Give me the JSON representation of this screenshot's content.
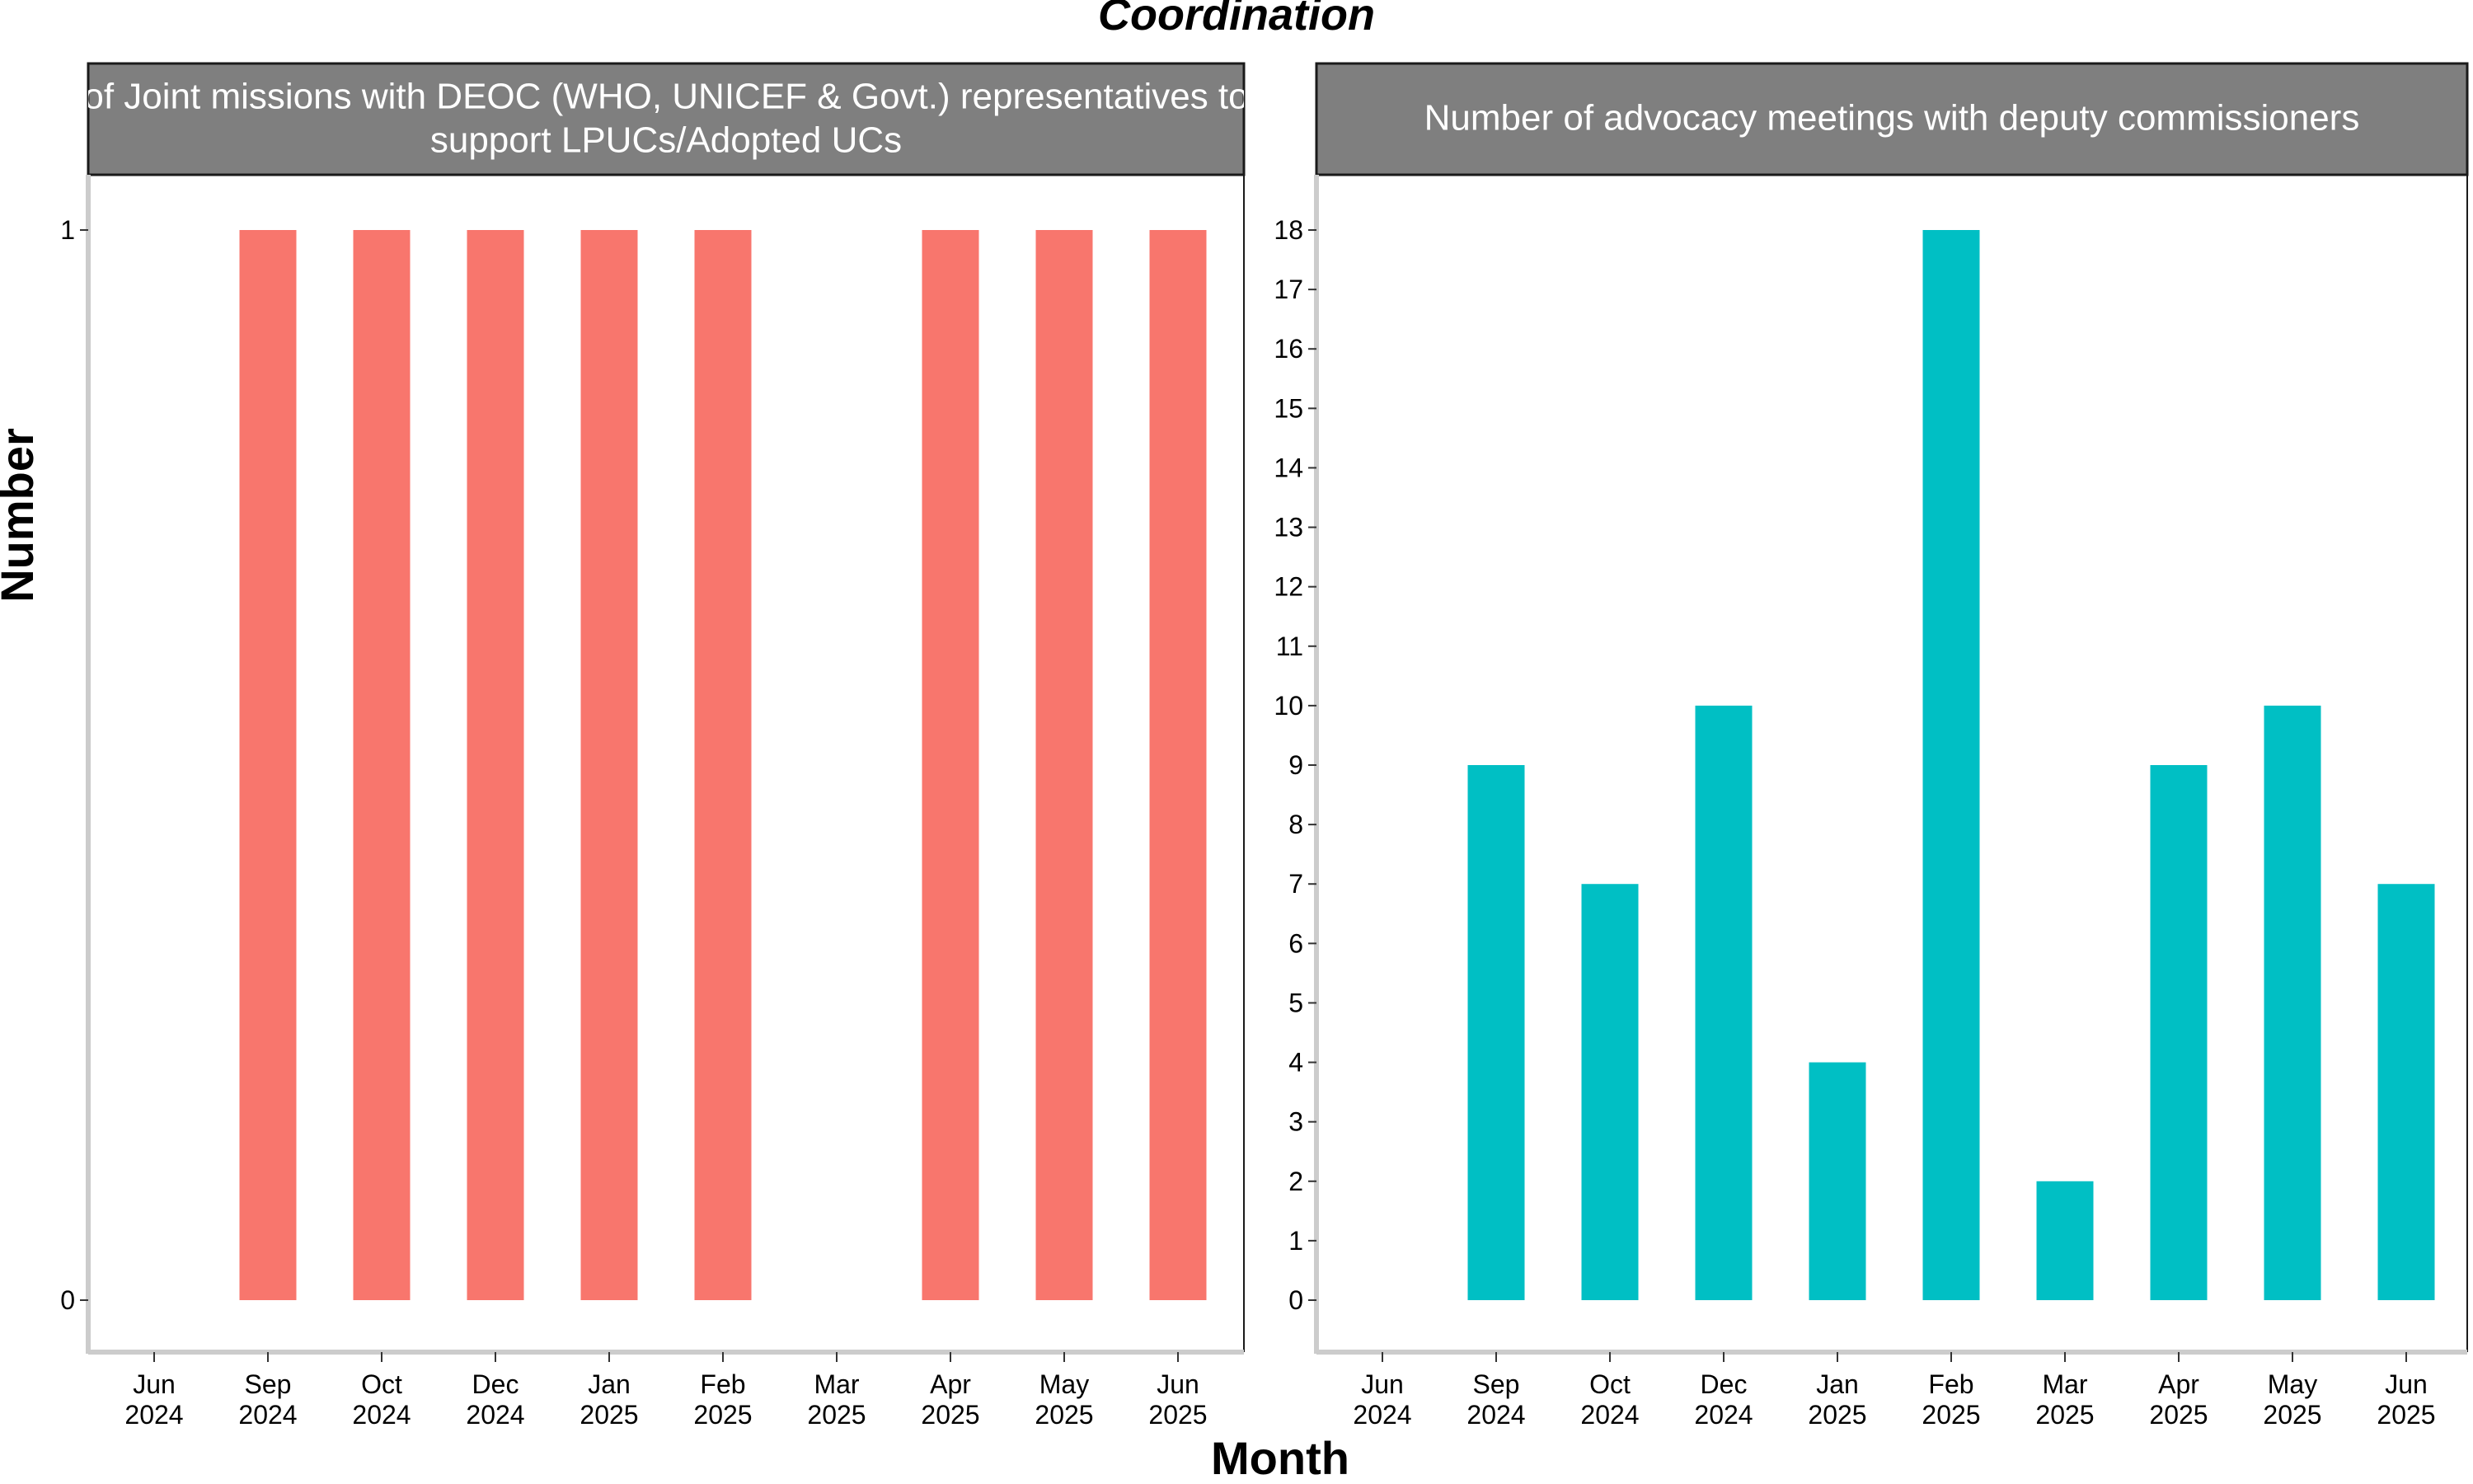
{
  "chart_data": {
    "type": "bar",
    "title": "Coordination",
    "xlabel": "Month",
    "ylabel": "Number",
    "x_ticks": [
      {
        "month": "Jun",
        "year": "2024"
      },
      {
        "month": "Sep",
        "year": "2024"
      },
      {
        "month": "Oct",
        "year": "2024"
      },
      {
        "month": "Dec",
        "year": "2024"
      },
      {
        "month": "Jan",
        "year": "2025"
      },
      {
        "month": "Feb",
        "year": "2025"
      },
      {
        "month": "Mar",
        "year": "2025"
      },
      {
        "month": "Apr",
        "year": "2025"
      },
      {
        "month": "May",
        "year": "2025"
      },
      {
        "month": "Jun",
        "year": "2025"
      }
    ],
    "panels": [
      {
        "strip_lines": [
          "of Joint missions with DEOC (WHO, UNICEF & Govt.) representatives to",
          "support LPUCs/Adopted UCs"
        ],
        "color": "#F8766D",
        "ylim": [
          0,
          1
        ],
        "yticks": [
          0,
          1
        ],
        "values": [
          null,
          1,
          1,
          1,
          1,
          1,
          null,
          1,
          1,
          1
        ]
      },
      {
        "strip_lines": [
          "Number of advocacy meetings with deputy commissioners"
        ],
        "color": "#00BFC4",
        "ylim": [
          0,
          18
        ],
        "yticks": [
          0,
          1,
          2,
          3,
          4,
          5,
          6,
          7,
          8,
          9,
          10,
          11,
          12,
          13,
          14,
          15,
          16,
          17,
          18
        ],
        "values": [
          null,
          9,
          7,
          10,
          4,
          18,
          2,
          9,
          10,
          7
        ]
      }
    ],
    "strip_fill": "#7F7F7F",
    "grid": false
  }
}
